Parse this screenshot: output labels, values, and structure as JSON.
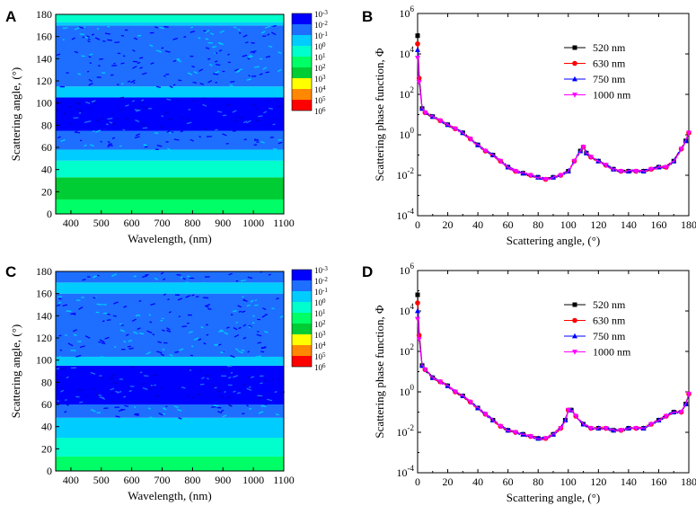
{
  "colors": {
    "series": [
      "#000000",
      "#ff0000",
      "#0000ff",
      "#ff00ff"
    ],
    "contour": [
      "#0000ff",
      "#1e6fff",
      "#00ccff",
      "#00ffcc",
      "#00ff66",
      "#00cc33",
      "#ffff00",
      "#ff8800",
      "#ff0000"
    ]
  },
  "chart_data": [
    {
      "panel": "A",
      "type": "heatmap",
      "xlabel": "Wavelength, (nm)",
      "ylabel": "Scattering angle, (°)",
      "xlim": [
        350,
        1100
      ],
      "ylim": [
        0,
        180
      ],
      "xticks": [
        "400",
        "500",
        "600",
        "700",
        "800",
        "900",
        "1000",
        "1100"
      ],
      "yticks": [
        "0",
        "20",
        "40",
        "60",
        "80",
        "100",
        "120",
        "140",
        "160",
        "180"
      ],
      "colorbar_labels": [
        "10-3",
        "10-2",
        "10-1",
        "100",
        "101",
        "102",
        "103",
        "104",
        "105",
        "106"
      ],
      "bands": [
        {
          "y0": 0,
          "y1": 13,
          "color_index": 4
        },
        {
          "y0": 13,
          "y1": 33,
          "color_index": 5
        },
        {
          "y0": 33,
          "y1": 48,
          "color_index": 3
        },
        {
          "y0": 48,
          "y1": 58,
          "color_index": 2
        },
        {
          "y0": 58,
          "y1": 75,
          "color_index": 1
        },
        {
          "y0": 75,
          "y1": 105,
          "color_index": 0
        },
        {
          "y0": 105,
          "y1": 115,
          "color_index": 2
        },
        {
          "y0": 115,
          "y1": 170,
          "color_index": 1
        },
        {
          "y0": 170,
          "y1": 173,
          "color_index": 2
        },
        {
          "y0": 173,
          "y1": 180,
          "color_index": 3
        }
      ]
    },
    {
      "panel": "B",
      "type": "line",
      "xlabel": "Scattering angle, (°)",
      "ylabel": "Scattering phase function, Φ",
      "xlim": [
        0,
        180
      ],
      "ylim_exp": [
        -4,
        6
      ],
      "xticks": [
        "0",
        "20",
        "40",
        "60",
        "80",
        "100",
        "120",
        "140",
        "160",
        "180"
      ],
      "ytick_exp": [
        "-4",
        "-2",
        "0",
        "2",
        "4",
        "6"
      ],
      "x": [
        0,
        1,
        3,
        5,
        10,
        15,
        20,
        25,
        30,
        35,
        40,
        45,
        50,
        55,
        60,
        65,
        70,
        75,
        80,
        85,
        90,
        95,
        100,
        104,
        108,
        110,
        112,
        115,
        120,
        125,
        130,
        135,
        140,
        145,
        150,
        155,
        160,
        165,
        170,
        175,
        178,
        180
      ],
      "series": [
        {
          "name": "520  nm",
          "log10_values": [
            4.9,
            3.0,
            1.3,
            1.1,
            0.9,
            0.7,
            0.5,
            0.3,
            0.1,
            -0.2,
            -0.5,
            -0.8,
            -1.0,
            -1.3,
            -1.6,
            -1.8,
            -1.9,
            -2.0,
            -2.1,
            -2.2,
            -2.1,
            -2.0,
            -1.8,
            -1.3,
            -0.8,
            -0.6,
            -0.9,
            -1.1,
            -1.3,
            -1.5,
            -1.7,
            -1.8,
            -1.8,
            -1.8,
            -1.8,
            -1.7,
            -1.6,
            -1.6,
            -1.3,
            -0.7,
            -0.3,
            0.1
          ]
        },
        {
          "name": "630  nm",
          "log10_values": [
            4.5,
            2.8,
            1.3,
            1.1,
            0.9,
            0.7,
            0.5,
            0.3,
            0.1,
            -0.2,
            -0.5,
            -0.8,
            -1.0,
            -1.3,
            -1.6,
            -1.8,
            -1.9,
            -2.0,
            -2.1,
            -2.2,
            -2.1,
            -2.0,
            -1.8,
            -1.3,
            -0.8,
            -0.6,
            -0.9,
            -1.1,
            -1.3,
            -1.5,
            -1.7,
            -1.8,
            -1.8,
            -1.8,
            -1.8,
            -1.7,
            -1.6,
            -1.6,
            -1.3,
            -0.7,
            -0.3,
            0.1
          ]
        },
        {
          "name": "750  nm",
          "log10_values": [
            4.2,
            2.7,
            1.3,
            1.1,
            0.9,
            0.7,
            0.5,
            0.3,
            0.1,
            -0.2,
            -0.5,
            -0.8,
            -1.0,
            -1.3,
            -1.6,
            -1.8,
            -1.9,
            -2.0,
            -2.1,
            -2.2,
            -2.1,
            -2.0,
            -1.8,
            -1.3,
            -0.8,
            -0.6,
            -0.9,
            -1.1,
            -1.3,
            -1.5,
            -1.7,
            -1.8,
            -1.8,
            -1.8,
            -1.8,
            -1.7,
            -1.6,
            -1.6,
            -1.3,
            -0.7,
            -0.3,
            0.1
          ]
        },
        {
          "name": "1000 nm",
          "log10_values": [
            3.8,
            2.6,
            1.3,
            1.1,
            0.9,
            0.7,
            0.5,
            0.3,
            0.1,
            -0.2,
            -0.5,
            -0.8,
            -1.0,
            -1.3,
            -1.6,
            -1.8,
            -1.9,
            -2.0,
            -2.1,
            -2.2,
            -2.1,
            -2.0,
            -1.8,
            -1.3,
            -0.8,
            -0.6,
            -0.9,
            -1.1,
            -1.3,
            -1.5,
            -1.7,
            -1.8,
            -1.8,
            -1.8,
            -1.8,
            -1.7,
            -1.6,
            -1.6,
            -1.3,
            -0.7,
            -0.3,
            0.1
          ]
        }
      ]
    },
    {
      "panel": "C",
      "type": "heatmap",
      "xlabel": "Wavelength, (nm)",
      "ylabel": "Scattering angle, (°)",
      "xlim": [
        350,
        1100
      ],
      "ylim": [
        0,
        180
      ],
      "xticks": [
        "400",
        "500",
        "600",
        "700",
        "800",
        "900",
        "1000",
        "1100"
      ],
      "yticks": [
        "0",
        "20",
        "40",
        "60",
        "80",
        "100",
        "120",
        "140",
        "160",
        "180"
      ],
      "colorbar_labels": [
        "10-3",
        "10-2",
        "10-1",
        "100",
        "101",
        "102",
        "103",
        "104",
        "105",
        "106"
      ],
      "bands": [
        {
          "y0": 0,
          "y1": 13,
          "color_index": 4
        },
        {
          "y0": 13,
          "y1": 30,
          "color_index": 3
        },
        {
          "y0": 30,
          "y1": 48,
          "color_index": 2
        },
        {
          "y0": 48,
          "y1": 60,
          "color_index": 1
        },
        {
          "y0": 60,
          "y1": 95,
          "color_index": 0
        },
        {
          "y0": 95,
          "y1": 103,
          "color_index": 2
        },
        {
          "y0": 103,
          "y1": 160,
          "color_index": 1
        },
        {
          "y0": 160,
          "y1": 170,
          "color_index": 2
        },
        {
          "y0": 170,
          "y1": 180,
          "color_index": 1
        }
      ]
    },
    {
      "panel": "D",
      "type": "line",
      "xlabel": "Scattering angle, (°)",
      "ylabel": "Scattering phase function, Φ",
      "xlim": [
        0,
        180
      ],
      "ylim_exp": [
        -4,
        6
      ],
      "xticks": [
        "0",
        "20",
        "40",
        "60",
        "80",
        "100",
        "120",
        "140",
        "160",
        "180"
      ],
      "ytick_exp": [
        "-4",
        "-2",
        "0",
        "2",
        "4",
        "6"
      ],
      "x": [
        0,
        1,
        3,
        5,
        10,
        15,
        20,
        25,
        30,
        35,
        40,
        45,
        50,
        55,
        60,
        65,
        70,
        75,
        80,
        85,
        90,
        95,
        98,
        100,
        102,
        105,
        110,
        115,
        120,
        125,
        130,
        135,
        140,
        145,
        150,
        155,
        160,
        165,
        170,
        175,
        178,
        180
      ],
      "series": [
        {
          "name": "520  nm",
          "log10_values": [
            4.8,
            3.0,
            1.3,
            1.1,
            0.7,
            0.5,
            0.3,
            0.0,
            -0.2,
            -0.5,
            -0.8,
            -1.1,
            -1.4,
            -1.7,
            -1.9,
            -2.0,
            -2.1,
            -2.2,
            -2.3,
            -2.3,
            -2.1,
            -1.8,
            -1.4,
            -0.9,
            -0.9,
            -1.2,
            -1.6,
            -1.8,
            -1.8,
            -1.8,
            -1.9,
            -1.9,
            -1.8,
            -1.8,
            -1.8,
            -1.6,
            -1.4,
            -1.2,
            -1.0,
            -1.0,
            -0.6,
            -0.1
          ]
        },
        {
          "name": "630  nm",
          "log10_values": [
            4.4,
            2.8,
            1.3,
            1.1,
            0.7,
            0.5,
            0.3,
            0.0,
            -0.2,
            -0.5,
            -0.8,
            -1.1,
            -1.4,
            -1.7,
            -1.9,
            -2.0,
            -2.1,
            -2.2,
            -2.3,
            -2.3,
            -2.1,
            -1.8,
            -1.4,
            -0.9,
            -0.9,
            -1.2,
            -1.6,
            -1.8,
            -1.8,
            -1.8,
            -1.9,
            -1.9,
            -1.8,
            -1.8,
            -1.8,
            -1.6,
            -1.4,
            -1.2,
            -1.0,
            -1.0,
            -0.6,
            -0.1
          ]
        },
        {
          "name": "750  nm",
          "log10_values": [
            4.0,
            2.7,
            1.3,
            1.1,
            0.7,
            0.5,
            0.3,
            0.0,
            -0.2,
            -0.5,
            -0.8,
            -1.1,
            -1.4,
            -1.7,
            -1.9,
            -2.0,
            -2.1,
            -2.2,
            -2.3,
            -2.3,
            -2.1,
            -1.8,
            -1.4,
            -0.9,
            -0.9,
            -1.2,
            -1.6,
            -1.8,
            -1.8,
            -1.8,
            -1.9,
            -1.9,
            -1.8,
            -1.8,
            -1.8,
            -1.6,
            -1.4,
            -1.2,
            -1.0,
            -1.0,
            -0.6,
            -0.1
          ]
        },
        {
          "name": "1000 nm",
          "log10_values": [
            3.6,
            2.6,
            1.3,
            1.1,
            0.7,
            0.5,
            0.3,
            0.0,
            -0.2,
            -0.5,
            -0.8,
            -1.1,
            -1.4,
            -1.7,
            -1.9,
            -2.0,
            -2.1,
            -2.2,
            -2.3,
            -2.3,
            -2.1,
            -1.8,
            -1.4,
            -0.9,
            -0.9,
            -1.2,
            -1.6,
            -1.8,
            -1.8,
            -1.8,
            -1.9,
            -1.9,
            -1.8,
            -1.8,
            -1.8,
            -1.6,
            -1.4,
            -1.2,
            -1.0,
            -1.0,
            -0.6,
            -0.1
          ]
        }
      ]
    }
  ]
}
